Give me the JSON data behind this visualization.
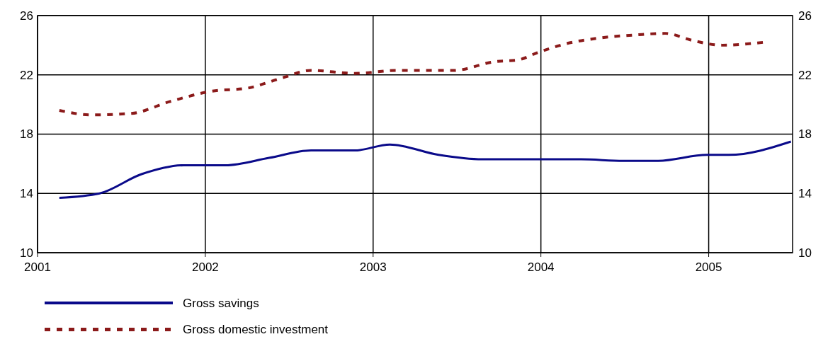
{
  "chart_data": {
    "type": "line",
    "xlim": [
      2001,
      2005.5
    ],
    "xticks": [
      2001,
      2002,
      2003,
      2004,
      2005
    ],
    "ylim": [
      10,
      26
    ],
    "yticks": [
      10,
      14,
      18,
      22,
      26
    ],
    "y2lim": [
      10,
      26
    ],
    "y2ticks": [
      10,
      14,
      18,
      22,
      26
    ],
    "grid": true,
    "legend": "bottom",
    "series": [
      {
        "name": "Gross savings",
        "color": "#0a0a8a",
        "line_style": "solid",
        "x": [
          2001.13,
          2001.37,
          2001.62,
          2001.87,
          2002.12,
          2002.38,
          2002.63,
          2002.89,
          2003.1,
          2003.39,
          2003.65,
          2003.98,
          2004.24,
          2004.49,
          2004.7,
          2004.99,
          2005.12,
          2005.49
        ],
        "values": [
          13.7,
          14.0,
          15.3,
          15.9,
          15.9,
          16.4,
          16.9,
          16.9,
          17.3,
          16.6,
          16.3,
          16.3,
          16.3,
          16.2,
          16.2,
          16.6,
          16.6,
          17.5
        ]
      },
      {
        "name": "Gross domestic investment",
        "color": "#8b1a1a",
        "line_style": "dashed",
        "x": [
          2001.13,
          2001.32,
          2001.56,
          2001.79,
          2002.04,
          2002.25,
          2002.46,
          2002.63,
          2002.89,
          2003.14,
          2003.48,
          2003.73,
          2003.86,
          2003.98,
          2004.15,
          2004.36,
          2004.57,
          2004.74,
          2004.91,
          2005.08,
          2005.33
        ],
        "values": [
          19.6,
          19.3,
          19.4,
          20.2,
          20.9,
          21.1,
          21.8,
          22.3,
          22.1,
          22.3,
          22.3,
          22.9,
          23.0,
          23.5,
          24.1,
          24.5,
          24.7,
          24.8,
          24.3,
          24.0,
          24.2
        ]
      }
    ]
  }
}
